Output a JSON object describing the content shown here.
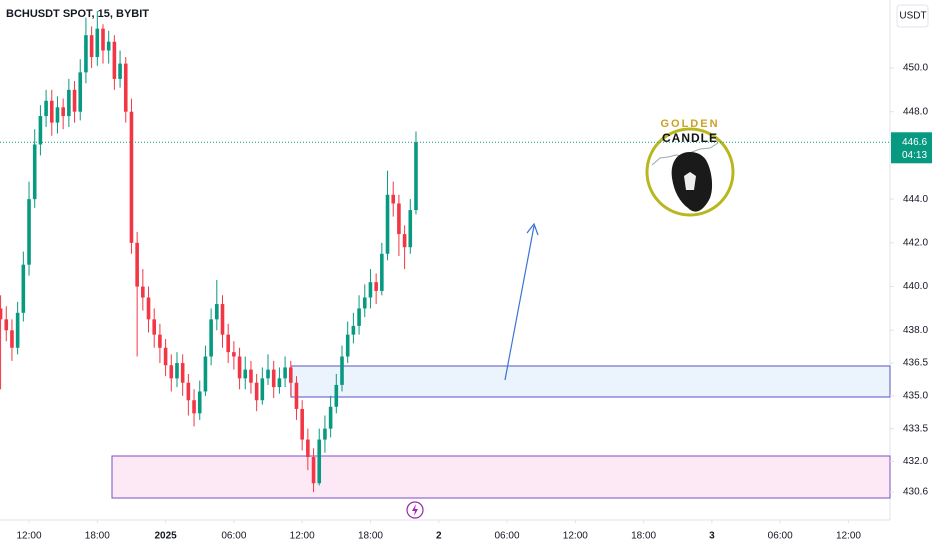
{
  "chart_data": {
    "type": "candlestick",
    "title": "BCHUSDT SPOT, 15, BYBIT",
    "currency": "USDT",
    "up_color": "#089981",
    "down_color": "#f23645",
    "grid": false,
    "x": [
      9.5,
      10,
      10.5,
      11,
      11.5,
      12,
      12.5,
      13,
      13.5,
      14,
      14.5,
      15,
      15.5,
      16,
      16.5,
      17,
      17.5,
      18,
      18.5,
      19,
      19.5,
      20,
      20.5,
      21,
      21.5,
      22,
      22.5,
      23,
      23.5,
      24,
      24.5,
      25,
      25.5,
      26,
      26.5,
      27,
      27.5,
      28,
      28.5,
      29,
      29.5,
      30,
      30.5,
      31,
      31.5,
      32,
      32.5,
      33,
      33.5,
      34,
      34.5,
      35,
      35.5,
      36,
      36.5,
      37,
      37.5,
      38,
      38.5,
      39,
      39.5,
      40,
      40.5,
      41,
      41.5,
      42,
      42.5,
      43,
      43.5,
      44,
      44.5,
      45,
      45.5,
      46
    ],
    "open": [
      439,
      438.5,
      438,
      437.2,
      438.8,
      441,
      444,
      446.5,
      447.8,
      448.5,
      447.5,
      448.2,
      447.8,
      449,
      448,
      449.8,
      451.5,
      450.5,
      451.8,
      450.8,
      451.2,
      449.5,
      450.2,
      448,
      442,
      440,
      439.5,
      438.5,
      437.8,
      437.2,
      436.4,
      435.8,
      436.5,
      435.6,
      434.8,
      434.2,
      435.2,
      436.8,
      438.5,
      439.2,
      437.8,
      437,
      436.8,
      435.8,
      436.2,
      435.6,
      434.8,
      435.8,
      436.2,
      435.4,
      435.8,
      436.3,
      435.6,
      434.4,
      433,
      432.2,
      431,
      433,
      433.5,
      434.5,
      435.5,
      436.8,
      437.8,
      438.2,
      439,
      439.5,
      440.2,
      439.8,
      441.5,
      444.2,
      443.8,
      442.4,
      441.8,
      443.5
    ],
    "high": [
      439.6,
      439.1,
      438.5,
      439.3,
      441.6,
      444.8,
      447.2,
      448.3,
      449,
      449,
      448.7,
      448.6,
      449.5,
      449.4,
      450.4,
      452.3,
      451.9,
      452.6,
      452,
      451.7,
      451.5,
      450.8,
      450.5,
      448.6,
      442.5,
      440.8,
      440,
      439,
      438.3,
      437.6,
      436.9,
      437,
      436.9,
      436,
      435.3,
      435.7,
      437.3,
      439,
      440.3,
      439.6,
      438.3,
      437.5,
      437.2,
      436.8,
      436.6,
      436,
      436.3,
      436.9,
      436.6,
      436.3,
      436.8,
      436.6,
      435.9,
      434.8,
      433.5,
      432.6,
      433.5,
      434.1,
      435,
      436,
      437.3,
      438.4,
      438.8,
      439.6,
      440.1,
      440.8,
      440.6,
      442,
      445.3,
      444.8,
      444.2,
      442.8,
      444,
      447.1
    ],
    "low": [
      435.3,
      437.5,
      436.6,
      436.9,
      438.4,
      440.5,
      443.6,
      446,
      447.3,
      446.9,
      447,
      447.2,
      447.3,
      447.5,
      447.6,
      449.3,
      450,
      450.1,
      450.2,
      450.2,
      449,
      449.1,
      447.5,
      441.5,
      436.8,
      438.9,
      437.9,
      437.2,
      436.5,
      435.9,
      435.2,
      435.4,
      435,
      434.1,
      433.6,
      433.9,
      435,
      436.4,
      438,
      437.2,
      436.5,
      436.2,
      435.3,
      435.3,
      435.1,
      434.3,
      434.6,
      435.5,
      434.9,
      435.1,
      435.4,
      435,
      433.9,
      432.5,
      431.6,
      430.6,
      430.9,
      432.4,
      433.1,
      434.2,
      435.2,
      436.5,
      437.4,
      437.8,
      438.6,
      439,
      439.2,
      439.6,
      441.2,
      443.2,
      441.4,
      440.8,
      441.5,
      443.3
    ],
    "close": [
      438.5,
      438,
      437.2,
      438.8,
      441,
      444,
      446.5,
      447.8,
      448.5,
      447.5,
      448.2,
      447.8,
      449,
      448,
      449.8,
      451.5,
      450.5,
      451.8,
      450.8,
      451.2,
      449.5,
      450.2,
      448,
      442,
      440,
      439.5,
      438.5,
      437.8,
      437.2,
      436.4,
      435.8,
      436.5,
      435.6,
      434.8,
      434.2,
      435.2,
      436.8,
      438.5,
      439.2,
      437.8,
      437,
      436.8,
      435.8,
      436.2,
      435.6,
      434.8,
      435.8,
      436.2,
      435.4,
      435.8,
      436.3,
      435.6,
      434.4,
      433,
      432.2,
      431,
      433,
      433.5,
      434.5,
      435.5,
      436.8,
      437.8,
      438.2,
      439,
      439.5,
      440.2,
      439.8,
      441.5,
      444.2,
      443.8,
      442.4,
      441.8,
      443.5,
      446.6
    ],
    "last_price": 446.6,
    "countdown": "04:13",
    "xlim": [
      9.45,
      87.65
    ],
    "xticks": [
      {
        "value": 12,
        "label": "12:00"
      },
      {
        "value": 18,
        "label": "18:00"
      },
      {
        "value": 24,
        "label": "2025"
      },
      {
        "value": 30,
        "label": "06:00"
      },
      {
        "value": 36,
        "label": "12:00"
      },
      {
        "value": 42,
        "label": "18:00"
      },
      {
        "value": 48,
        "label": "2"
      },
      {
        "value": 54,
        "label": "06:00"
      },
      {
        "value": 60,
        "label": "12:00"
      },
      {
        "value": 66,
        "label": "18:00"
      },
      {
        "value": 72,
        "label": "3"
      },
      {
        "value": 78,
        "label": "06:00"
      },
      {
        "value": 84,
        "label": "12:00"
      }
    ],
    "ylim": [
      429.32,
      453.11
    ],
    "yticks": [
      {
        "value": 450,
        "label": "450.0"
      },
      {
        "value": 448,
        "label": "448.0"
      },
      {
        "value": 444,
        "label": "444.0"
      },
      {
        "value": 442,
        "label": "442.0"
      },
      {
        "value": 440,
        "label": "440.0"
      },
      {
        "value": 438,
        "label": "438.0"
      },
      436.5,
      {
        "value": 435,
        "label": "435.0"
      },
      433.5,
      {
        "value": 432,
        "label": "432.0"
      },
      430.6
    ]
  },
  "logo": {
    "line1": "GOLDEN",
    "line2": "CANDLE"
  }
}
